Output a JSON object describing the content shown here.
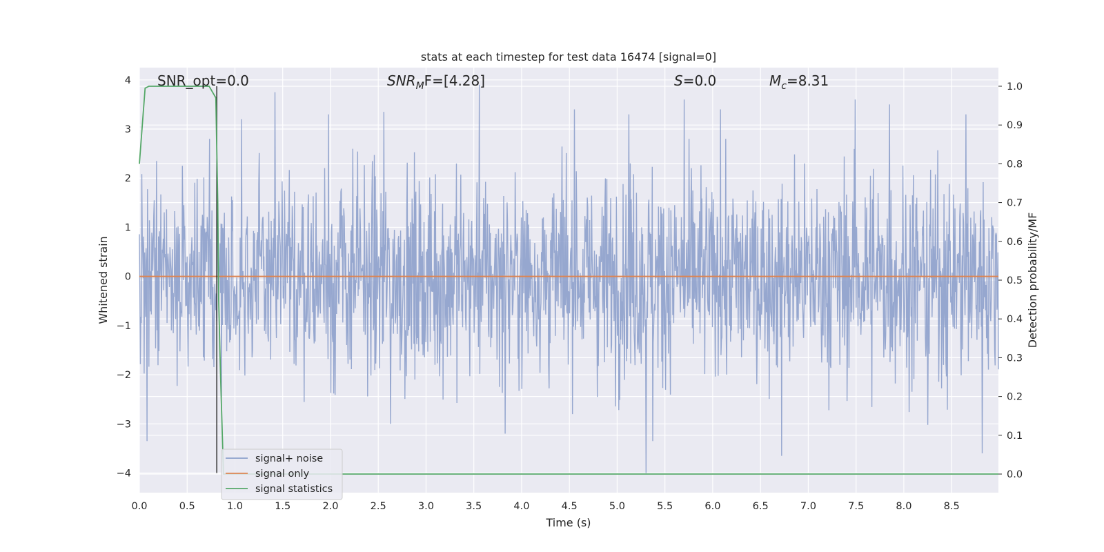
{
  "chart_data": {
    "type": "line",
    "title": "stats at each timestep for test data 16474 [signal=0]",
    "xlabel": "Time (s)",
    "ylabel": "Whitened strain",
    "y2label": "Detection probability/MF",
    "xlim": [
      0.0,
      8.99
    ],
    "ylim": [
      -4.4,
      4.25
    ],
    "y2lim": [
      -0.048,
      1.048
    ],
    "x_ticks": [
      "0.0",
      "0.5",
      "1.0",
      "1.5",
      "2.0",
      "2.5",
      "3.0",
      "3.5",
      "4.0",
      "4.5",
      "5.0",
      "5.5",
      "6.0",
      "6.5",
      "7.0",
      "7.5",
      "8.0",
      "8.5"
    ],
    "y_ticks": [
      "4",
      "3",
      "2",
      "1",
      "0",
      "−1",
      "−2",
      "−3",
      "−4"
    ],
    "y2_ticks": [
      "1.0",
      "0.9",
      "0.8",
      "0.7",
      "0.6",
      "0.5",
      "0.4",
      "0.3",
      "0.2",
      "0.1",
      "0.0"
    ],
    "annotations": {
      "snr_opt": "SNR_opt=0.0",
      "snr_mf_base": "SNR",
      "snr_mf_sub": "M",
      "snr_mf_rest": "F=[4.28]",
      "s_stat_var": "S",
      "s_stat_rest": "=0.0",
      "mc_var": "M",
      "mc_sub": "c",
      "mc_rest": "=8.31"
    },
    "series": [
      {
        "name": "signal+ noise",
        "color": "#8da0cb",
        "description_values": "whitened noise, sample spikes",
        "typical_range": [
          -1.6,
          1.6
        ],
        "extremes": [
          {
            "x": 0.08,
            "y": -3.35
          },
          {
            "x": 0.18,
            "y": 2.35
          },
          {
            "x": 0.45,
            "y": 2.25
          },
          {
            "x": 1.07,
            "y": 3.2
          },
          {
            "x": 1.42,
            "y": 3.75
          },
          {
            "x": 1.98,
            "y": 3.3
          },
          {
            "x": 2.56,
            "y": 3.35
          },
          {
            "x": 2.63,
            "y": -3.0
          },
          {
            "x": 3.56,
            "y": 3.9
          },
          {
            "x": 3.83,
            "y": -3.2
          },
          {
            "x": 4.55,
            "y": 3.4
          },
          {
            "x": 5.12,
            "y": 3.3
          },
          {
            "x": 5.3,
            "y": -4.0
          },
          {
            "x": 5.37,
            "y": -3.35
          },
          {
            "x": 5.7,
            "y": 3.6
          },
          {
            "x": 6.08,
            "y": 3.4
          },
          {
            "x": 6.72,
            "y": -3.65
          },
          {
            "x": 7.49,
            "y": 3.6
          },
          {
            "x": 7.85,
            "y": 3.5
          },
          {
            "x": 8.25,
            "y": -3.02
          },
          {
            "x": 8.65,
            "y": 3.3
          },
          {
            "x": 8.82,
            "y": -3.6
          }
        ]
      },
      {
        "name": "signal only",
        "color": "#dd8452",
        "x": [
          0.0,
          8.99
        ],
        "y": [
          0.0,
          0.0
        ]
      },
      {
        "name": "signal statistics",
        "color": "#55a868",
        "axis": "right",
        "x": [
          0.0,
          0.06,
          0.1,
          0.15,
          0.5,
          0.73,
          0.8,
          0.82,
          0.83,
          0.85,
          0.88,
          8.99
        ],
        "y": [
          0.8,
          0.995,
          1.0,
          1.0,
          1.0,
          1.0,
          0.97,
          0.7,
          0.45,
          0.25,
          0.0,
          0.0
        ]
      }
    ],
    "vertical_marker": {
      "x": 0.81,
      "color": "#222222"
    },
    "legend": {
      "placement": "lower-left",
      "entries": [
        "signal+ noise",
        "signal only",
        "signal statistics"
      ]
    },
    "grid": true,
    "colors": {
      "background": "#eaeaf2",
      "grid": "#ffffff"
    }
  }
}
